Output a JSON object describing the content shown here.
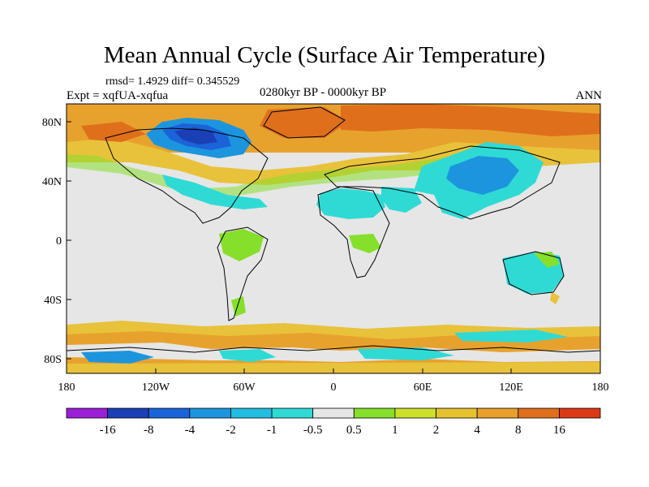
{
  "title": "Mean Annual Cycle (Surface Air Temperature)",
  "stats": "rmsd= 1.4929 diff= 0.345529",
  "experiment": "Expt = xqfUA-xqfua",
  "period": "0280kyr BP - 0000kyr BP",
  "season": "ANN",
  "lat_labels": [
    "80N",
    "40N",
    "0",
    "40S",
    "80S"
  ],
  "lon_labels": [
    "180",
    "120W",
    "60W",
    "0",
    "60E",
    "120E",
    "180"
  ],
  "colorbar": {
    "colors": [
      "#9b1fd6",
      "#1b3fb4",
      "#1b63d9",
      "#1c95de",
      "#22bde0",
      "#2fdad5",
      "#e6e6e6",
      "#86df2b",
      "#cde02c",
      "#e7c22e",
      "#e89f2c",
      "#e06f1c",
      "#da3a16"
    ],
    "labels": [
      "-16",
      "-8",
      "-4",
      "-2",
      "-1",
      "-0.5",
      "0.5",
      "1",
      "2",
      "4",
      "8",
      "16"
    ]
  },
  "colors": {
    "land_neutral": "#e6e6e6",
    "warm_light": "#e8c23a",
    "warm": "#e7a22e",
    "warm_strong": "#e06f1c",
    "cool_light": "#2fdad5",
    "cool": "#1c95de",
    "cool_strong": "#1b3fb4",
    "mild_warm": "#86df2b"
  }
}
